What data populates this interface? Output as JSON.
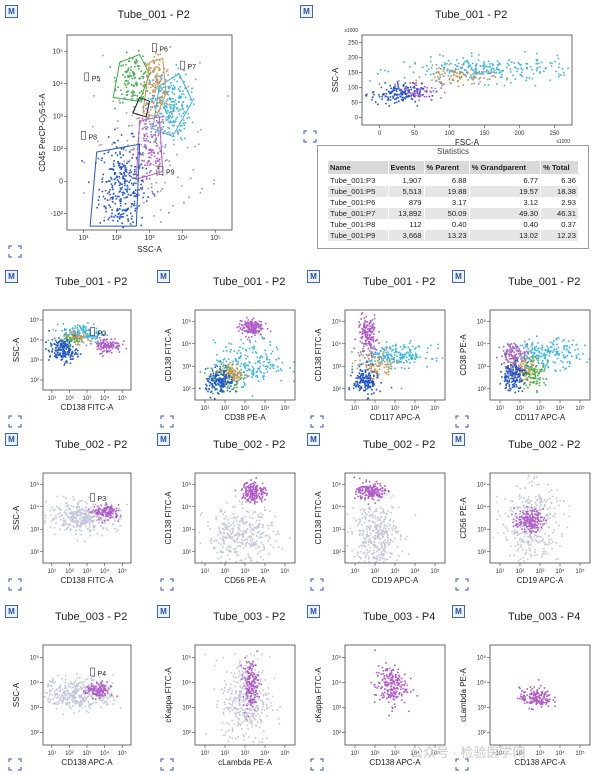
{
  "badge": "M",
  "watermark": "公众号 · 检验医学网",
  "statistics": {
    "title": "Statistics",
    "columns": [
      "Name",
      "Events",
      "% Parent",
      "% Grandparent",
      "% Total"
    ],
    "rows": [
      [
        "Tube_001:P3",
        "1,907",
        "6.88",
        "6.77",
        "6.36"
      ],
      [
        "Tube_001:P5",
        "5,513",
        "19.88",
        "19.57",
        "18.38"
      ],
      [
        "Tube_001:P6",
        "879",
        "3.17",
        "3.12",
        "2.93"
      ],
      [
        "Tube_001:P7",
        "13,892",
        "50.09",
        "49.30",
        "46.31"
      ],
      [
        "Tube_001:P8",
        "112",
        "0.40",
        "0.40",
        "0.37"
      ],
      [
        "Tube_001:P9",
        "3,668",
        "13.23",
        "13.02",
        "12.23"
      ]
    ]
  },
  "chart_data": [
    {
      "id": "main",
      "type": "scatter",
      "title": "Tube_001 - P2",
      "xlabel": "SSC-A",
      "ylabel": "CD45 PerCP-Cy5-5-A",
      "xticks": [
        "10¹",
        "10²",
        "10³",
        "10⁴",
        "10⁵"
      ],
      "yticks": [
        "-10²",
        "0",
        "10²",
        "10³",
        "10⁴",
        "10⁵"
      ],
      "gates": [
        "P5",
        "P6",
        "P7",
        "P8",
        "P9"
      ],
      "populations": [
        {
          "color": "#2255d0",
          "cx": 0.33,
          "cy": 0.22,
          "sx": 0.07,
          "sy": 0.12,
          "n": 300
        },
        {
          "color": "#b05bc8",
          "cx": 0.5,
          "cy": 0.4,
          "sx": 0.05,
          "sy": 0.12,
          "n": 140
        },
        {
          "color": "#3cb24a",
          "cx": 0.4,
          "cy": 0.78,
          "sx": 0.05,
          "sy": 0.06,
          "n": 120
        },
        {
          "color": "#d2934a",
          "cx": 0.54,
          "cy": 0.74,
          "sx": 0.04,
          "sy": 0.1,
          "n": 120
        },
        {
          "color": "#39b6e3",
          "cx": 0.62,
          "cy": 0.64,
          "sx": 0.06,
          "sy": 0.09,
          "n": 220
        },
        {
          "color": "#a0a0a0",
          "cx": 0.5,
          "cy": 0.45,
          "sx": 0.18,
          "sy": 0.2,
          "n": 160
        }
      ]
    },
    {
      "id": "fsc",
      "type": "scatter",
      "title": "Tube_001 - P2",
      "xlabel": "FSC-A",
      "ylabel": "SSC-A",
      "xticks": [
        "0",
        "50",
        "100",
        "150",
        "200",
        "250"
      ],
      "xunit": "x1000",
      "yticks": [
        "0",
        "50",
        "100",
        "150",
        "200",
        "250"
      ],
      "yunit": "x1000",
      "populations": [
        {
          "color": "#39b6e3",
          "cx": 0.6,
          "cy": 0.62,
          "sx": 0.2,
          "sy": 0.07,
          "n": 260
        },
        {
          "color": "#d2934a",
          "cx": 0.45,
          "cy": 0.55,
          "sx": 0.08,
          "sy": 0.05,
          "n": 80
        },
        {
          "color": "#b05bc8",
          "cx": 0.26,
          "cy": 0.4,
          "sx": 0.06,
          "sy": 0.05,
          "n": 80
        },
        {
          "color": "#2255d0",
          "cx": 0.16,
          "cy": 0.35,
          "sx": 0.06,
          "sy": 0.06,
          "n": 140
        }
      ]
    },
    {
      "id": "r1c1",
      "type": "scatter",
      "title": "Tube_001 - P2",
      "xlabel": "CD138 FITC-A",
      "ylabel": "SSC-A",
      "gates": [
        "P3"
      ],
      "populations": [
        {
          "color": "#39b6e3",
          "cx": 0.45,
          "cy": 0.72,
          "sx": 0.12,
          "sy": 0.06,
          "n": 150
        },
        {
          "color": "#d2934a",
          "cx": 0.38,
          "cy": 0.66,
          "sx": 0.08,
          "sy": 0.05,
          "n": 60
        },
        {
          "color": "#b05bc8",
          "cx": 0.72,
          "cy": 0.57,
          "sx": 0.08,
          "sy": 0.05,
          "n": 110
        },
        {
          "color": "#3cb24a",
          "cx": 0.25,
          "cy": 0.62,
          "sx": 0.06,
          "sy": 0.05,
          "n": 40
        },
        {
          "color": "#2255d0",
          "cx": 0.22,
          "cy": 0.5,
          "sx": 0.08,
          "sy": 0.07,
          "n": 160
        }
      ]
    },
    {
      "id": "r1c2",
      "type": "scatter",
      "title": "Tube_001 - P2",
      "xlabel": "CD38 PE-A",
      "ylabel": "CD138 FITC-A",
      "populations": [
        {
          "color": "#b05bc8",
          "cx": 0.55,
          "cy": 0.82,
          "sx": 0.06,
          "sy": 0.05,
          "n": 160
        },
        {
          "color": "#39b6e3",
          "cx": 0.55,
          "cy": 0.42,
          "sx": 0.18,
          "sy": 0.12,
          "n": 200
        },
        {
          "color": "#3cb24a",
          "cx": 0.28,
          "cy": 0.25,
          "sx": 0.08,
          "sy": 0.08,
          "n": 110
        },
        {
          "color": "#d2934a",
          "cx": 0.36,
          "cy": 0.3,
          "sx": 0.06,
          "sy": 0.06,
          "n": 80
        },
        {
          "color": "#2255d0",
          "cx": 0.24,
          "cy": 0.2,
          "sx": 0.07,
          "sy": 0.07,
          "n": 150
        }
      ]
    },
    {
      "id": "r1c3",
      "type": "scatter",
      "title": "Tube_001 - P2",
      "xlabel": "CD117 APC-A",
      "ylabel": "CD138 FITC-A",
      "populations": [
        {
          "color": "#b05bc8",
          "cx": 0.22,
          "cy": 0.72,
          "sx": 0.05,
          "sy": 0.12,
          "n": 160
        },
        {
          "color": "#39b6e3",
          "cx": 0.5,
          "cy": 0.5,
          "sx": 0.18,
          "sy": 0.06,
          "n": 200
        },
        {
          "color": "#d2934a",
          "cx": 0.3,
          "cy": 0.38,
          "sx": 0.1,
          "sy": 0.08,
          "n": 90
        },
        {
          "color": "#2255d0",
          "cx": 0.2,
          "cy": 0.22,
          "sx": 0.06,
          "sy": 0.08,
          "n": 160
        }
      ]
    },
    {
      "id": "r1c4",
      "type": "scatter",
      "title": "Tube_001 - P2",
      "xlabel": "CD117 APC-A",
      "ylabel": "CD38 PE-A",
      "populations": [
        {
          "color": "#39b6e3",
          "cx": 0.55,
          "cy": 0.52,
          "sx": 0.18,
          "sy": 0.08,
          "n": 200
        },
        {
          "color": "#b05bc8",
          "cx": 0.24,
          "cy": 0.52,
          "sx": 0.07,
          "sy": 0.06,
          "n": 110
        },
        {
          "color": "#3cb24a",
          "cx": 0.42,
          "cy": 0.32,
          "sx": 0.06,
          "sy": 0.09,
          "n": 110
        },
        {
          "color": "#d2934a",
          "cx": 0.32,
          "cy": 0.34,
          "sx": 0.07,
          "sy": 0.07,
          "n": 80
        },
        {
          "color": "#2255d0",
          "cx": 0.22,
          "cy": 0.28,
          "sx": 0.06,
          "sy": 0.08,
          "n": 160
        }
      ]
    },
    {
      "id": "r2c1",
      "type": "scatter",
      "title": "Tube_002 - P2",
      "xlabel": "CD138 FITC-A",
      "ylabel": "SSC-A",
      "gates": [
        "P3"
      ],
      "populations": [
        {
          "color": "#c3c6dc",
          "cx": 0.45,
          "cy": 0.52,
          "sx": 0.2,
          "sy": 0.08,
          "n": 380
        },
        {
          "color": "#b05bc8",
          "cx": 0.72,
          "cy": 0.57,
          "sx": 0.07,
          "sy": 0.04,
          "n": 120
        }
      ]
    },
    {
      "id": "r2c2",
      "type": "scatter",
      "title": "Tube_002 - P2",
      "xlabel": "CD56 PE-A",
      "ylabel": "CD138 FITC-A",
      "populations": [
        {
          "color": "#c3c6dc",
          "cx": 0.45,
          "cy": 0.3,
          "sx": 0.18,
          "sy": 0.16,
          "n": 360
        },
        {
          "color": "#b05bc8",
          "cx": 0.58,
          "cy": 0.8,
          "sx": 0.06,
          "sy": 0.06,
          "n": 170
        }
      ]
    },
    {
      "id": "r2c3",
      "type": "scatter",
      "title": "Tube_002 - P2",
      "xlabel": "CD19 APC-A",
      "ylabel": "CD138 FITC-A",
      "populations": [
        {
          "color": "#c3c6dc",
          "cx": 0.3,
          "cy": 0.32,
          "sx": 0.12,
          "sy": 0.18,
          "n": 360
        },
        {
          "color": "#b05bc8",
          "cx": 0.25,
          "cy": 0.8,
          "sx": 0.07,
          "sy": 0.05,
          "n": 170
        }
      ]
    },
    {
      "id": "r2c4",
      "type": "scatter",
      "title": "Tube_002 - P2",
      "xlabel": "CD19 APC-A",
      "ylabel": "CD56 PE-A",
      "populations": [
        {
          "color": "#c3c6dc",
          "cx": 0.4,
          "cy": 0.45,
          "sx": 0.14,
          "sy": 0.22,
          "n": 400
        },
        {
          "color": "#b05bc8",
          "cx": 0.38,
          "cy": 0.48,
          "sx": 0.07,
          "sy": 0.06,
          "n": 160
        }
      ]
    },
    {
      "id": "r3c1",
      "type": "scatter",
      "title": "Tube_003 - P2",
      "xlabel": "CD138 APC-A",
      "ylabel": "SSC-A",
      "gates": [
        "P4"
      ],
      "populations": [
        {
          "color": "#c3c6dc",
          "cx": 0.4,
          "cy": 0.52,
          "sx": 0.2,
          "sy": 0.08,
          "n": 380
        },
        {
          "color": "#b05bc8",
          "cx": 0.62,
          "cy": 0.55,
          "sx": 0.07,
          "sy": 0.04,
          "n": 120
        }
      ]
    },
    {
      "id": "r3c2",
      "type": "scatter",
      "title": "Tube_003 - P2",
      "xlabel": "cLambda PE-A",
      "ylabel": "cKappa FITC-A",
      "populations": [
        {
          "color": "#c3c6dc",
          "cx": 0.5,
          "cy": 0.45,
          "sx": 0.12,
          "sy": 0.22,
          "n": 380
        },
        {
          "color": "#b05bc8",
          "cx": 0.55,
          "cy": 0.62,
          "sx": 0.04,
          "sy": 0.12,
          "n": 160
        }
      ]
    },
    {
      "id": "r3c3",
      "type": "scatter",
      "title": "Tube_003 - P4",
      "xlabel": "CD138 APC-A",
      "ylabel": "cKappa FITC-A",
      "populations": [
        {
          "color": "#b05bc8",
          "cx": 0.45,
          "cy": 0.6,
          "sx": 0.08,
          "sy": 0.1,
          "n": 200
        }
      ]
    },
    {
      "id": "r3c4",
      "type": "scatter",
      "title": "Tube_003 - P4",
      "xlabel": "CD138 APC-A",
      "ylabel": "cLambda PE-A",
      "populations": [
        {
          "color": "#b05bc8",
          "cx": 0.45,
          "cy": 0.48,
          "sx": 0.08,
          "sy": 0.05,
          "n": 160
        }
      ]
    }
  ]
}
